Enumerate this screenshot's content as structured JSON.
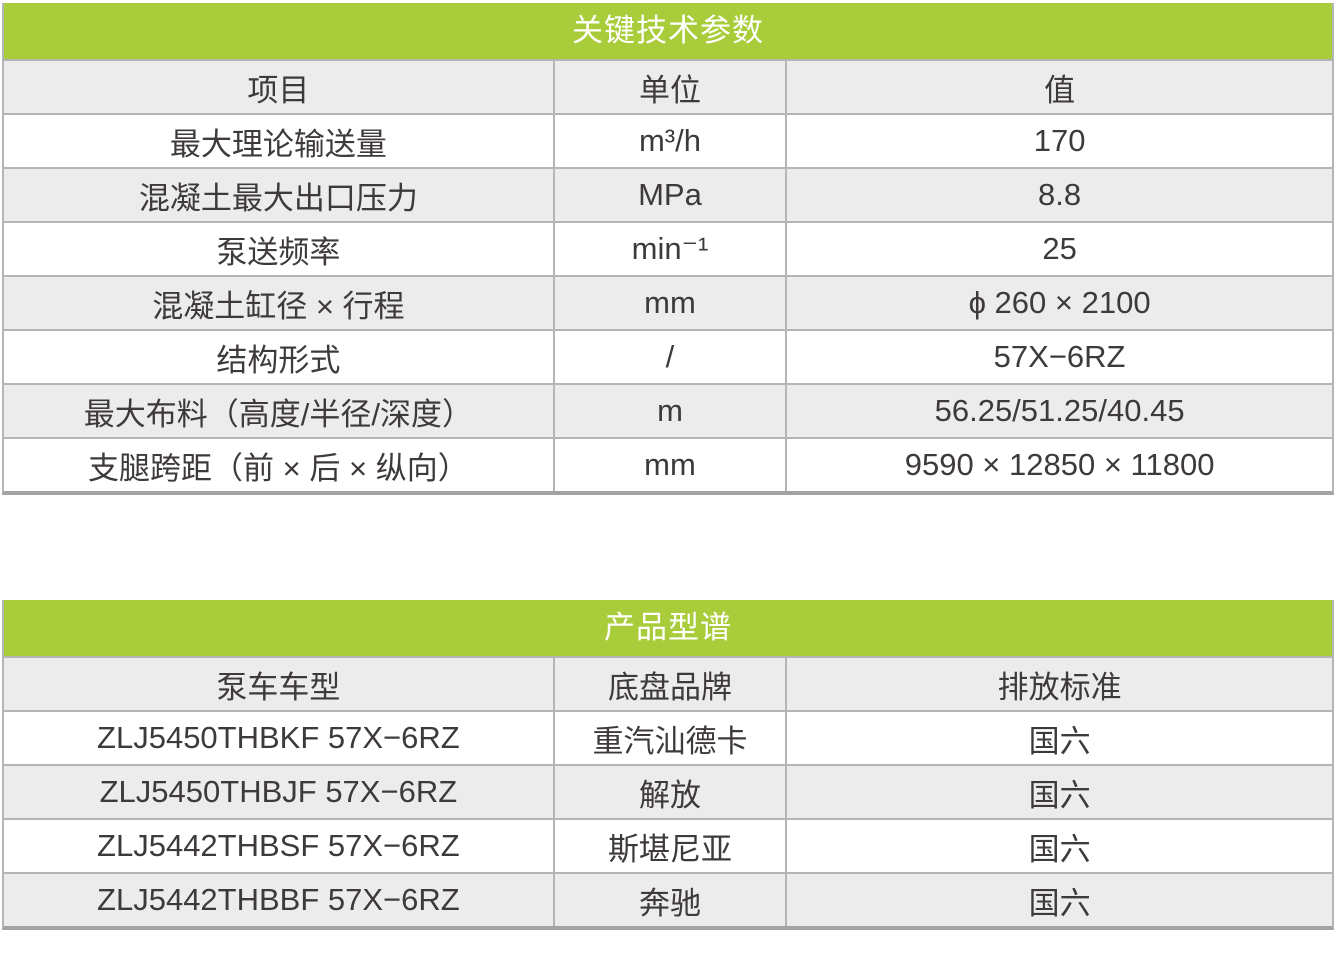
{
  "colors": {
    "accent_green": "#a8cc3a",
    "title_text": "#ffffff",
    "row_alt_gray": "#ececec",
    "cell_text": "#3e3a39",
    "grid_border": "#b5b5b5",
    "bottom_border": "#a3a3a3"
  },
  "spec_table": {
    "title": "关键技术参数",
    "columns": [
      "项目",
      "单位",
      "值"
    ],
    "rows": [
      [
        "最大理论输送量",
        "m³/h",
        "170"
      ],
      [
        "混凝土最大出口压力",
        "MPa",
        "8.8"
      ],
      [
        "泵送频率",
        "min⁻¹",
        "25"
      ],
      [
        "混凝土缸径 × 行程",
        "mm",
        "ϕ 260 × 2100"
      ],
      [
        "结构形式",
        "/",
        "57X−6RZ"
      ],
      [
        "最大布料（高度/半径/深度）",
        "m",
        "56.25/51.25/40.45"
      ],
      [
        "支腿跨距（前 × 后 × 纵向）",
        "mm",
        "9590 × 12850 × 11800"
      ]
    ]
  },
  "model_table": {
    "title": "产品型谱",
    "columns": [
      "泵车车型",
      "底盘品牌",
      "排放标准"
    ],
    "rows": [
      [
        "ZLJ5450THBKF 57X−6RZ",
        "重汽汕德卡",
        "国六"
      ],
      [
        "ZLJ5450THBJF 57X−6RZ",
        "解放",
        "国六"
      ],
      [
        "ZLJ5442THBSF 57X−6RZ",
        "斯堪尼亚",
        "国六"
      ],
      [
        "ZLJ5442THBBF 57X−6RZ",
        "奔驰",
        "国六"
      ]
    ]
  }
}
